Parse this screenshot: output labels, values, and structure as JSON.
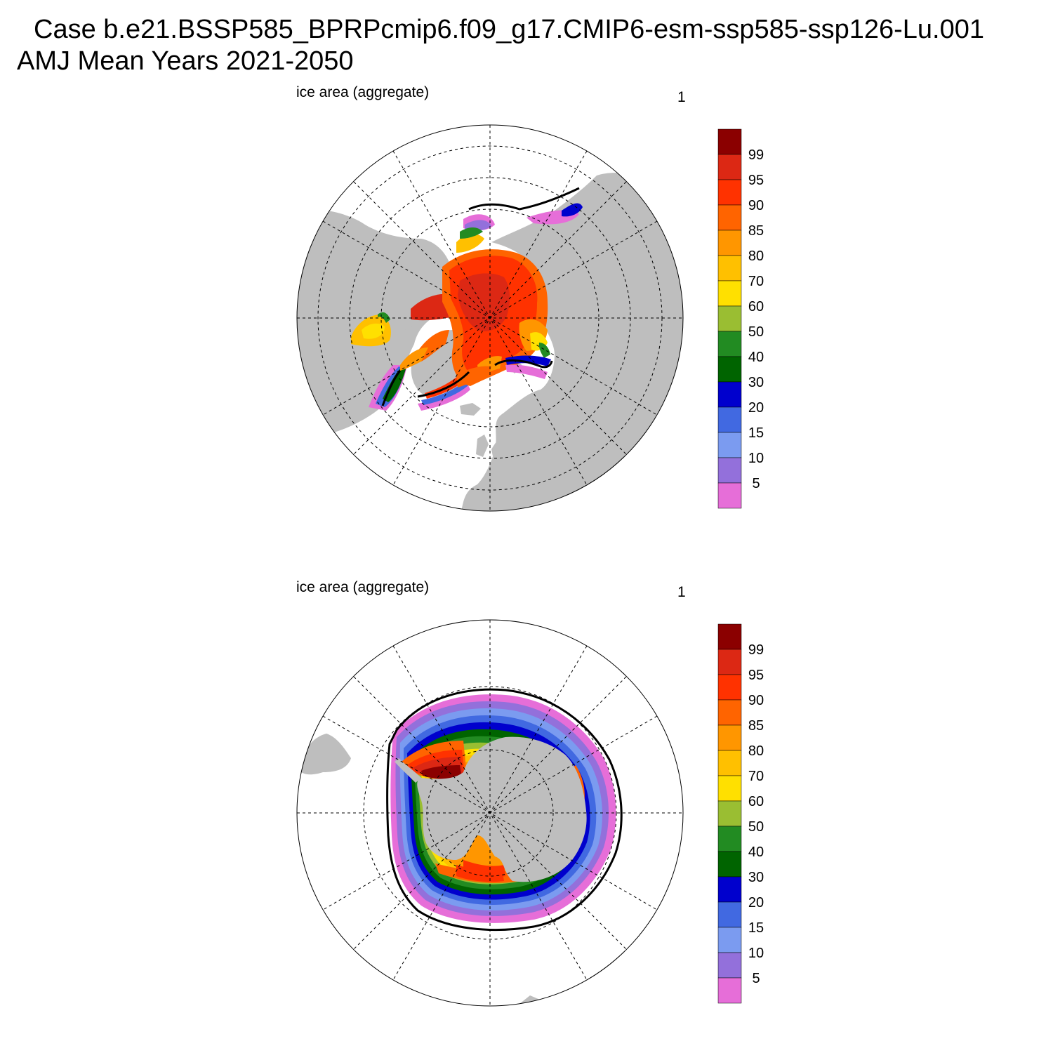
{
  "title": {
    "line1": "Case b.e21.BSSP585_BPRPcmip6.f09_g17.CMIP6-esm-ssp585-ssp126-Lu.001",
    "line2": "AMJ Mean   Years 2021-2050"
  },
  "palette": {
    "land": "#bebebe",
    "ocean": "#ffffff",
    "bins": [
      "#e66ed8",
      "#9370db",
      "#7b9bf0",
      "#4169e1",
      "#0000cd",
      "#006400",
      "#228b22",
      "#9abe32",
      "#ffe000",
      "#ffc000",
      "#ff9600",
      "#ff6400",
      "#ff3200",
      "#dc2814",
      "#8b0000"
    ]
  },
  "panels": [
    {
      "id": "north",
      "hemisphere": "Northern",
      "label_left": "ice area  (aggregate)",
      "label_right": "1",
      "colorbar_labels": [
        "99",
        "95",
        "90",
        "85",
        "80",
        "70",
        "60",
        "50",
        "40",
        "30",
        "20",
        "15",
        "10",
        "5"
      ]
    },
    {
      "id": "south",
      "hemisphere": "Southern",
      "label_left": "ice area  (aggregate)",
      "label_right": "1",
      "colorbar_labels": [
        "99",
        "95",
        "90",
        "85",
        "80",
        "70",
        "60",
        "50",
        "40",
        "30",
        "20",
        "15",
        "10",
        "5"
      ]
    }
  ]
}
